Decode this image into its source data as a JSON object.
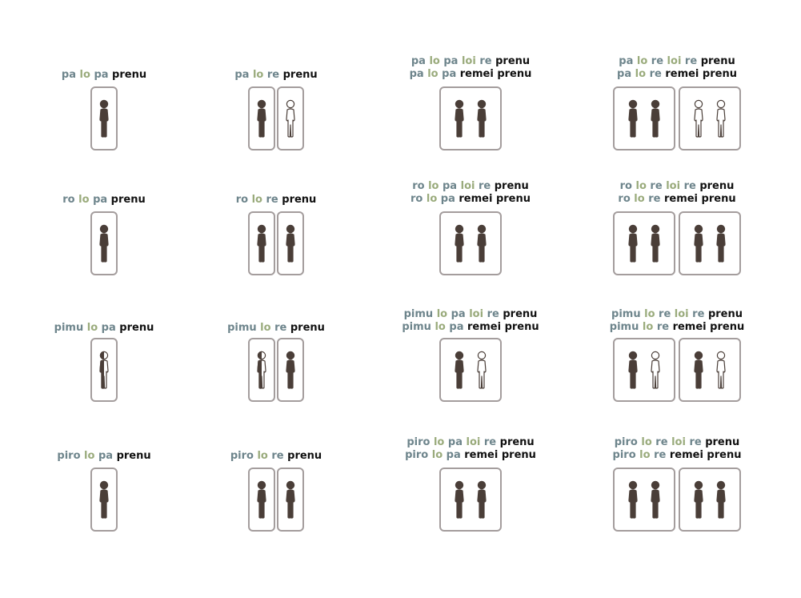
{
  "colors": {
    "quantifier": "#6e858c",
    "article": "#9aab7c",
    "predicate": "#111111",
    "frame": "#a49d9d",
    "figure_fill": "#4a3e38"
  },
  "rows": [
    {
      "cells": [
        {
          "lines": [
            [
              {
                "t": "pa",
                "c": "q"
              },
              {
                "t": "lo",
                "c": "a"
              },
              {
                "t": "pa",
                "c": "q"
              },
              {
                "t": "prenu",
                "c": "p"
              }
            ]
          ],
          "groups": [
            [
              "full"
            ]
          ]
        },
        {
          "lines": [
            [
              {
                "t": "pa",
                "c": "q"
              },
              {
                "t": "lo",
                "c": "a"
              },
              {
                "t": "re",
                "c": "q"
              },
              {
                "t": "prenu",
                "c": "p"
              }
            ]
          ],
          "groups": [
            [
              "full"
            ],
            [
              "empty"
            ]
          ]
        },
        {
          "lines": [
            [
              {
                "t": "pa",
                "c": "q"
              },
              {
                "t": "lo",
                "c": "a"
              },
              {
                "t": "pa",
                "c": "q"
              },
              {
                "t": "loi",
                "c": "a"
              },
              {
                "t": "re",
                "c": "q"
              },
              {
                "t": "prenu",
                "c": "p"
              }
            ],
            [
              {
                "t": "pa",
                "c": "q"
              },
              {
                "t": "lo",
                "c": "a"
              },
              {
                "t": "pa",
                "c": "q"
              },
              {
                "t": "remei",
                "c": "p"
              },
              {
                "t": "prenu",
                "c": "p"
              }
            ]
          ],
          "groups": [
            [
              "full",
              "full"
            ]
          ]
        },
        {
          "lines": [
            [
              {
                "t": "pa",
                "c": "q"
              },
              {
                "t": "lo",
                "c": "a"
              },
              {
                "t": "re",
                "c": "q"
              },
              {
                "t": "loi",
                "c": "a"
              },
              {
                "t": "re",
                "c": "q"
              },
              {
                "t": "prenu",
                "c": "p"
              }
            ],
            [
              {
                "t": "pa",
                "c": "q"
              },
              {
                "t": "lo",
                "c": "a"
              },
              {
                "t": "re",
                "c": "q"
              },
              {
                "t": "remei",
                "c": "p"
              },
              {
                "t": "prenu",
                "c": "p"
              }
            ]
          ],
          "groups": [
            [
              "full",
              "full"
            ],
            [
              "empty",
              "empty"
            ]
          ]
        }
      ]
    },
    {
      "cells": [
        {
          "lines": [
            [
              {
                "t": "ro",
                "c": "q"
              },
              {
                "t": "lo",
                "c": "a"
              },
              {
                "t": "pa",
                "c": "q"
              },
              {
                "t": "prenu",
                "c": "p"
              }
            ]
          ],
          "groups": [
            [
              "full"
            ]
          ]
        },
        {
          "lines": [
            [
              {
                "t": "ro",
                "c": "q"
              },
              {
                "t": "lo",
                "c": "a"
              },
              {
                "t": "re",
                "c": "q"
              },
              {
                "t": "prenu",
                "c": "p"
              }
            ]
          ],
          "groups": [
            [
              "full"
            ],
            [
              "full"
            ]
          ]
        },
        {
          "lines": [
            [
              {
                "t": "ro",
                "c": "q"
              },
              {
                "t": "lo",
                "c": "a"
              },
              {
                "t": "pa",
                "c": "q"
              },
              {
                "t": "loi",
                "c": "a"
              },
              {
                "t": "re",
                "c": "q"
              },
              {
                "t": "prenu",
                "c": "p"
              }
            ],
            [
              {
                "t": "ro",
                "c": "q"
              },
              {
                "t": "lo",
                "c": "a"
              },
              {
                "t": "pa",
                "c": "q"
              },
              {
                "t": "remei",
                "c": "p"
              },
              {
                "t": "prenu",
                "c": "p"
              }
            ]
          ],
          "groups": [
            [
              "full",
              "full"
            ]
          ]
        },
        {
          "lines": [
            [
              {
                "t": "ro",
                "c": "q"
              },
              {
                "t": "lo",
                "c": "a"
              },
              {
                "t": "re",
                "c": "q"
              },
              {
                "t": "loi",
                "c": "a"
              },
              {
                "t": "re",
                "c": "q"
              },
              {
                "t": "prenu",
                "c": "p"
              }
            ],
            [
              {
                "t": "ro",
                "c": "q"
              },
              {
                "t": "lo",
                "c": "a"
              },
              {
                "t": "re",
                "c": "q"
              },
              {
                "t": "remei",
                "c": "p"
              },
              {
                "t": "prenu",
                "c": "p"
              }
            ]
          ],
          "groups": [
            [
              "full",
              "full"
            ],
            [
              "full",
              "full"
            ]
          ]
        }
      ]
    },
    {
      "cells": [
        {
          "lines": [
            [
              {
                "t": "pimu",
                "c": "q"
              },
              {
                "t": "lo",
                "c": "a"
              },
              {
                "t": "pa",
                "c": "q"
              },
              {
                "t": "prenu",
                "c": "p"
              }
            ]
          ],
          "groups": [
            [
              "half"
            ]
          ]
        },
        {
          "lines": [
            [
              {
                "t": "pimu",
                "c": "q"
              },
              {
                "t": "lo",
                "c": "a"
              },
              {
                "t": "re",
                "c": "q"
              },
              {
                "t": "prenu",
                "c": "p"
              }
            ]
          ],
          "groups": [
            [
              "half"
            ],
            [
              "headhalf"
            ]
          ]
        },
        {
          "lines": [
            [
              {
                "t": "pimu",
                "c": "q"
              },
              {
                "t": "lo",
                "c": "a"
              },
              {
                "t": "pa",
                "c": "q"
              },
              {
                "t": "loi",
                "c": "a"
              },
              {
                "t": "re",
                "c": "q"
              },
              {
                "t": "prenu",
                "c": "p"
              }
            ],
            [
              {
                "t": "pimu",
                "c": "q"
              },
              {
                "t": "lo",
                "c": "a"
              },
              {
                "t": "pa",
                "c": "q"
              },
              {
                "t": "remei",
                "c": "p"
              },
              {
                "t": "prenu",
                "c": "p"
              }
            ]
          ],
          "groups": [
            [
              "full",
              "empty"
            ]
          ]
        },
        {
          "lines": [
            [
              {
                "t": "pimu",
                "c": "q"
              },
              {
                "t": "lo",
                "c": "a"
              },
              {
                "t": "re",
                "c": "q"
              },
              {
                "t": "loi",
                "c": "a"
              },
              {
                "t": "re",
                "c": "q"
              },
              {
                "t": "prenu",
                "c": "p"
              }
            ],
            [
              {
                "t": "pimu",
                "c": "q"
              },
              {
                "t": "lo",
                "c": "a"
              },
              {
                "t": "re",
                "c": "q"
              },
              {
                "t": "remei",
                "c": "p"
              },
              {
                "t": "prenu",
                "c": "p"
              }
            ]
          ],
          "groups": [
            [
              "full",
              "empty"
            ],
            [
              "full",
              "empty"
            ]
          ]
        }
      ]
    },
    {
      "cells": [
        {
          "lines": [
            [
              {
                "t": "piro",
                "c": "q"
              },
              {
                "t": "lo",
                "c": "a"
              },
              {
                "t": "pa",
                "c": "q"
              },
              {
                "t": "prenu",
                "c": "p"
              }
            ]
          ],
          "groups": [
            [
              "full"
            ]
          ]
        },
        {
          "lines": [
            [
              {
                "t": "piro",
                "c": "q"
              },
              {
                "t": "lo",
                "c": "a"
              },
              {
                "t": "re",
                "c": "q"
              },
              {
                "t": "prenu",
                "c": "p"
              }
            ]
          ],
          "groups": [
            [
              "full"
            ],
            [
              "full"
            ]
          ]
        },
        {
          "lines": [
            [
              {
                "t": "piro",
                "c": "q"
              },
              {
                "t": "lo",
                "c": "a"
              },
              {
                "t": "pa",
                "c": "q"
              },
              {
                "t": "loi",
                "c": "a"
              },
              {
                "t": "re",
                "c": "q"
              },
              {
                "t": "prenu",
                "c": "p"
              }
            ],
            [
              {
                "t": "piro",
                "c": "q"
              },
              {
                "t": "lo",
                "c": "a"
              },
              {
                "t": "pa",
                "c": "q"
              },
              {
                "t": "remei",
                "c": "p"
              },
              {
                "t": "prenu",
                "c": "p"
              }
            ]
          ],
          "groups": [
            [
              "full",
              "full"
            ]
          ]
        },
        {
          "lines": [
            [
              {
                "t": "piro",
                "c": "q"
              },
              {
                "t": "lo",
                "c": "a"
              },
              {
                "t": "re",
                "c": "q"
              },
              {
                "t": "loi",
                "c": "a"
              },
              {
                "t": "re",
                "c": "q"
              },
              {
                "t": "prenu",
                "c": "p"
              }
            ],
            [
              {
                "t": "piro",
                "c": "q"
              },
              {
                "t": "lo",
                "c": "a"
              },
              {
                "t": "re",
                "c": "q"
              },
              {
                "t": "remei",
                "c": "p"
              },
              {
                "t": "prenu",
                "c": "p"
              }
            ]
          ],
          "groups": [
            [
              "full",
              "full"
            ],
            [
              "full",
              "full"
            ]
          ]
        }
      ]
    }
  ]
}
